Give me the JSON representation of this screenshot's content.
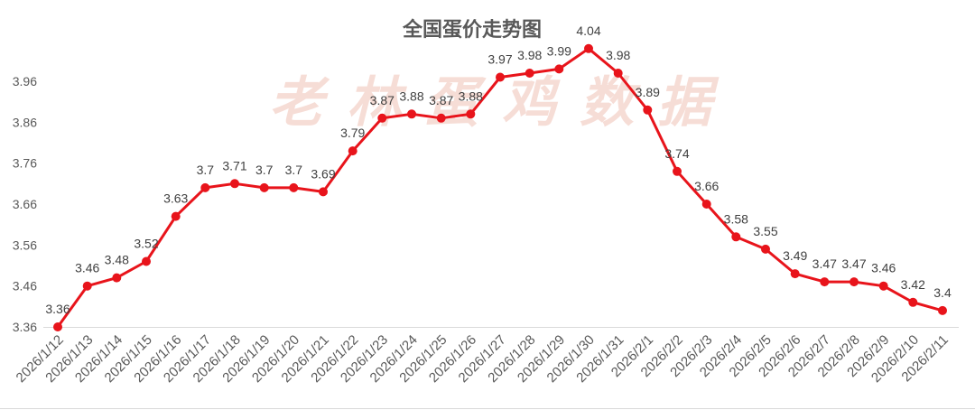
{
  "chart_data": {
    "type": "line",
    "title": "全国蛋价走势图",
    "watermark": "老林蛋鸡数据",
    "categories": [
      "2026/1/12",
      "2026/1/13",
      "2026/1/14",
      "2026/1/15",
      "2026/1/16",
      "2026/1/17",
      "2026/1/18",
      "2026/1/19",
      "2026/1/20",
      "2026/1/21",
      "2026/1/22",
      "2026/1/23",
      "2026/1/24",
      "2026/1/25",
      "2026/1/26",
      "2026/1/27",
      "2026/1/28",
      "2026/1/29",
      "2026/1/30",
      "2026/1/31",
      "2026/2/1",
      "2026/2/2",
      "2026/2/3",
      "2026/2/4",
      "2026/2/5",
      "2026/2/6",
      "2026/2/7",
      "2026/2/8",
      "2026/2/9",
      "2026/2/10",
      "2026/2/11"
    ],
    "series": [
      {
        "values": [
          3.36,
          3.46,
          3.48,
          3.52,
          3.63,
          3.7,
          3.71,
          3.7,
          3.7,
          3.69,
          3.79,
          3.87,
          3.88,
          3.87,
          3.88,
          3.97,
          3.98,
          3.99,
          4.04,
          3.98,
          3.89,
          3.74,
          3.66,
          3.58,
          3.55,
          3.49,
          3.47,
          3.47,
          3.46,
          3.42,
          3.4
        ],
        "markers": "circle",
        "data_labels": true
      }
    ],
    "yticks": [
      3.36,
      3.46,
      3.56,
      3.66,
      3.76,
      3.86,
      3.96
    ],
    "ylim": [
      3.36,
      4.06
    ],
    "grid": false,
    "legend": "none",
    "colors": {
      "line": "#e8141b",
      "data_label": "#404040",
      "axis_label": "#595959",
      "title": "#595959",
      "watermark": "#f0c2b6",
      "axis_line": "#d9d9d9"
    }
  }
}
